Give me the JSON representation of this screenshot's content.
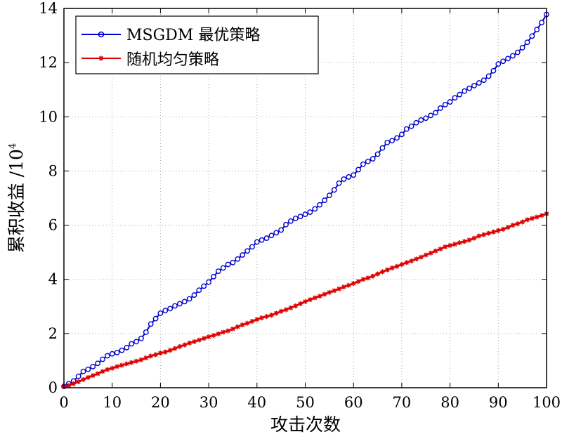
{
  "chart_data": {
    "type": "line",
    "xlabel": "攻击次数",
    "ylabel": "累积收益 /10",
    "ylabel_exponent": "4",
    "xlim": [
      0,
      100
    ],
    "ylim": [
      0,
      14
    ],
    "x_ticks": [
      "0",
      "10",
      "20",
      "30",
      "40",
      "50",
      "60",
      "70",
      "80",
      "90",
      "100"
    ],
    "y_ticks": [
      "0",
      "2",
      "4",
      "6",
      "8",
      "10",
      "12",
      "14"
    ],
    "grid": true,
    "legend_position": "top-left",
    "series": [
      {
        "name": "MSGDM 最优策略",
        "color": "#0000cc",
        "marker": "circle",
        "x": [
          0,
          1,
          2,
          3,
          4,
          5,
          6,
          7,
          8,
          9,
          10,
          11,
          12,
          13,
          14,
          15,
          16,
          17,
          18,
          19,
          20,
          21,
          22,
          23,
          24,
          25,
          26,
          27,
          28,
          29,
          30,
          31,
          32,
          33,
          34,
          35,
          36,
          37,
          38,
          39,
          40,
          41,
          42,
          43,
          44,
          45,
          46,
          47,
          48,
          49,
          50,
          51,
          52,
          53,
          54,
          55,
          56,
          57,
          58,
          59,
          60,
          61,
          62,
          63,
          64,
          65,
          66,
          67,
          68,
          69,
          70,
          71,
          72,
          73,
          74,
          75,
          76,
          77,
          78,
          79,
          80,
          81,
          82,
          83,
          84,
          85,
          86,
          87,
          88,
          89,
          90,
          91,
          92,
          93,
          94,
          95,
          96,
          97,
          98,
          99,
          100
        ],
        "y": [
          0.05,
          0.15,
          0.25,
          0.42,
          0.6,
          0.68,
          0.78,
          0.9,
          1.05,
          1.18,
          1.25,
          1.3,
          1.38,
          1.48,
          1.62,
          1.7,
          1.82,
          2.05,
          2.35,
          2.55,
          2.75,
          2.85,
          2.92,
          3.02,
          3.1,
          3.18,
          3.28,
          3.42,
          3.6,
          3.75,
          3.9,
          4.1,
          4.3,
          4.42,
          4.55,
          4.62,
          4.75,
          4.9,
          5.05,
          5.2,
          5.38,
          5.45,
          5.52,
          5.62,
          5.72,
          5.82,
          6.02,
          6.15,
          6.25,
          6.32,
          6.4,
          6.48,
          6.6,
          6.75,
          6.92,
          7.1,
          7.3,
          7.55,
          7.7,
          7.78,
          7.85,
          8.05,
          8.25,
          8.35,
          8.45,
          8.62,
          8.85,
          9.05,
          9.12,
          9.22,
          9.35,
          9.55,
          9.65,
          9.78,
          9.88,
          9.95,
          10.05,
          10.15,
          10.32,
          10.45,
          10.55,
          10.7,
          10.82,
          10.95,
          11.05,
          11.15,
          11.25,
          11.35,
          11.5,
          11.7,
          11.95,
          12.05,
          12.15,
          12.25,
          12.38,
          12.55,
          12.75,
          12.98,
          13.22,
          13.48,
          13.78
        ]
      },
      {
        "name": "随机均匀策略",
        "color": "#dd0000",
        "marker": "star",
        "x": [
          0,
          1,
          2,
          3,
          4,
          5,
          6,
          7,
          8,
          9,
          10,
          11,
          12,
          13,
          14,
          15,
          16,
          17,
          18,
          19,
          20,
          21,
          22,
          23,
          24,
          25,
          26,
          27,
          28,
          29,
          30,
          31,
          32,
          33,
          34,
          35,
          36,
          37,
          38,
          39,
          40,
          41,
          42,
          43,
          44,
          45,
          46,
          47,
          48,
          49,
          50,
          51,
          52,
          53,
          54,
          55,
          56,
          57,
          58,
          59,
          60,
          61,
          62,
          63,
          64,
          65,
          66,
          67,
          68,
          69,
          70,
          71,
          72,
          73,
          74,
          75,
          76,
          77,
          78,
          79,
          80,
          81,
          82,
          83,
          84,
          85,
          86,
          87,
          88,
          89,
          90,
          91,
          92,
          93,
          94,
          95,
          96,
          97,
          98,
          99,
          100
        ],
        "y": [
          0.05,
          0.08,
          0.15,
          0.22,
          0.3,
          0.38,
          0.45,
          0.52,
          0.6,
          0.67,
          0.72,
          0.78,
          0.83,
          0.88,
          0.93,
          0.98,
          1.03,
          1.1,
          1.17,
          1.22,
          1.28,
          1.32,
          1.38,
          1.45,
          1.52,
          1.58,
          1.65,
          1.7,
          1.76,
          1.82,
          1.88,
          1.93,
          1.99,
          2.05,
          2.1,
          2.17,
          2.25,
          2.32,
          2.38,
          2.45,
          2.52,
          2.58,
          2.63,
          2.68,
          2.75,
          2.82,
          2.88,
          2.95,
          3.02,
          3.1,
          3.18,
          3.25,
          3.32,
          3.38,
          3.45,
          3.52,
          3.58,
          3.65,
          3.72,
          3.78,
          3.85,
          3.92,
          4.0,
          4.05,
          4.12,
          4.2,
          4.28,
          4.35,
          4.42,
          4.48,
          4.55,
          4.62,
          4.68,
          4.75,
          4.82,
          4.9,
          4.97,
          5.05,
          5.12,
          5.2,
          5.25,
          5.3,
          5.35,
          5.4,
          5.45,
          5.52,
          5.6,
          5.65,
          5.7,
          5.75,
          5.8,
          5.85,
          5.92,
          6.0,
          6.05,
          6.12,
          6.2,
          6.25,
          6.3,
          6.36,
          6.42
        ]
      }
    ]
  }
}
